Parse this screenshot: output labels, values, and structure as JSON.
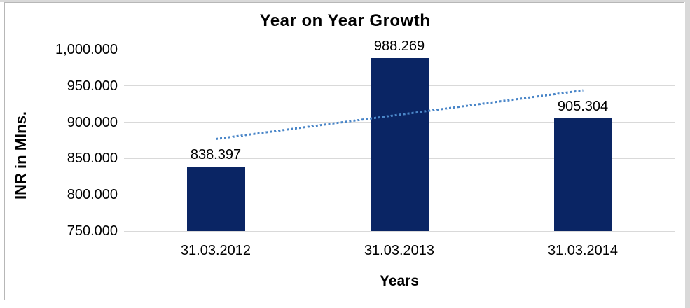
{
  "chart_data": {
    "type": "bar",
    "title": "Year on Year Growth",
    "xlabel": "Years",
    "ylabel": "INR in Mlns.",
    "categories": [
      "31.03.2012",
      "31.03.2013",
      "31.03.2014"
    ],
    "values": [
      838.397,
      988.269,
      905.304
    ],
    "data_labels": [
      "838.397",
      "988.269",
      "905.304"
    ],
    "ylim": [
      750,
      1000
    ],
    "yticks": [
      {
        "value": 1000,
        "label": "1,000.000"
      },
      {
        "value": 950,
        "label": "950.000"
      },
      {
        "value": 900,
        "label": "900.000"
      },
      {
        "value": 850,
        "label": "850.000"
      },
      {
        "value": 800,
        "label": "800.000"
      },
      {
        "value": 750,
        "label": "750.000"
      }
    ],
    "grid": true,
    "legend": false,
    "trendline": {
      "type": "linear",
      "style": "dotted",
      "start_value": 877.2,
      "end_value": 944.1
    },
    "colors": {
      "bar": "#0a2564",
      "trendline": "#4a86c8",
      "gridline": "#d9d9d9",
      "text": "#000000",
      "frame_border": "#b7b7b7",
      "outer_strip": "#d9d9d9"
    }
  }
}
